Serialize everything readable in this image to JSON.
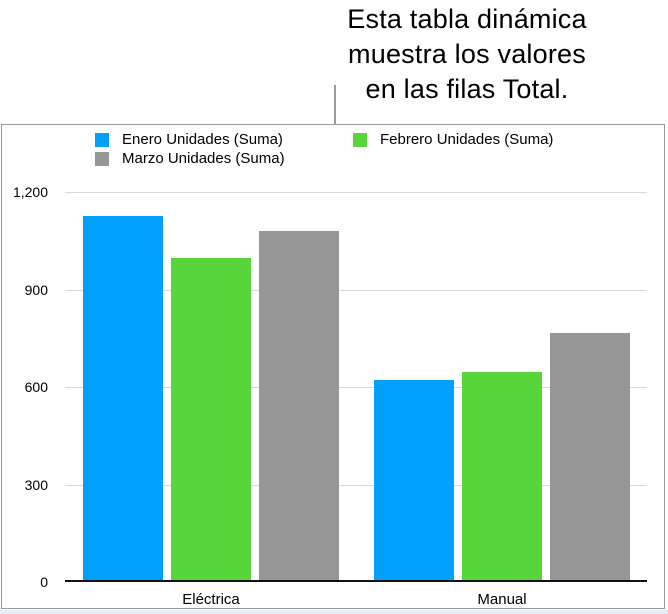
{
  "callout": {
    "text": "Esta tabla dinámica\nmuestra los valores\nen las filas Total."
  },
  "chart_data": {
    "type": "bar",
    "title": "",
    "categories": [
      "Eléctrica",
      "Manual"
    ],
    "series": [
      {
        "name": "Enero Unidades (Suma)",
        "color": "#00a0fc",
        "values": [
          1120,
          615
        ]
      },
      {
        "name": "Febrero Unidades (Suma)",
        "color": "#57d53b",
        "values": [
          990,
          640
        ]
      },
      {
        "name": "Marzo Unidades (Suma)",
        "color": "#969696",
        "values": [
          1075,
          760
        ]
      }
    ],
    "xlabel": "",
    "ylabel": "",
    "ylim": [
      0,
      1200
    ],
    "yticks": [
      0,
      300,
      600,
      900,
      1200
    ],
    "ytick_labels": [
      "0",
      "300",
      "600",
      "900",
      "1,200"
    ],
    "grid": true,
    "legend_position": "top"
  },
  "colors": {
    "series_blue": "#00a0fc",
    "series_green": "#57d53b",
    "series_gray": "#969696",
    "panel_border": "#999999",
    "gridline": "#d9d9d9",
    "axis": "#111111",
    "callout_line": "#9b9b9b"
  }
}
